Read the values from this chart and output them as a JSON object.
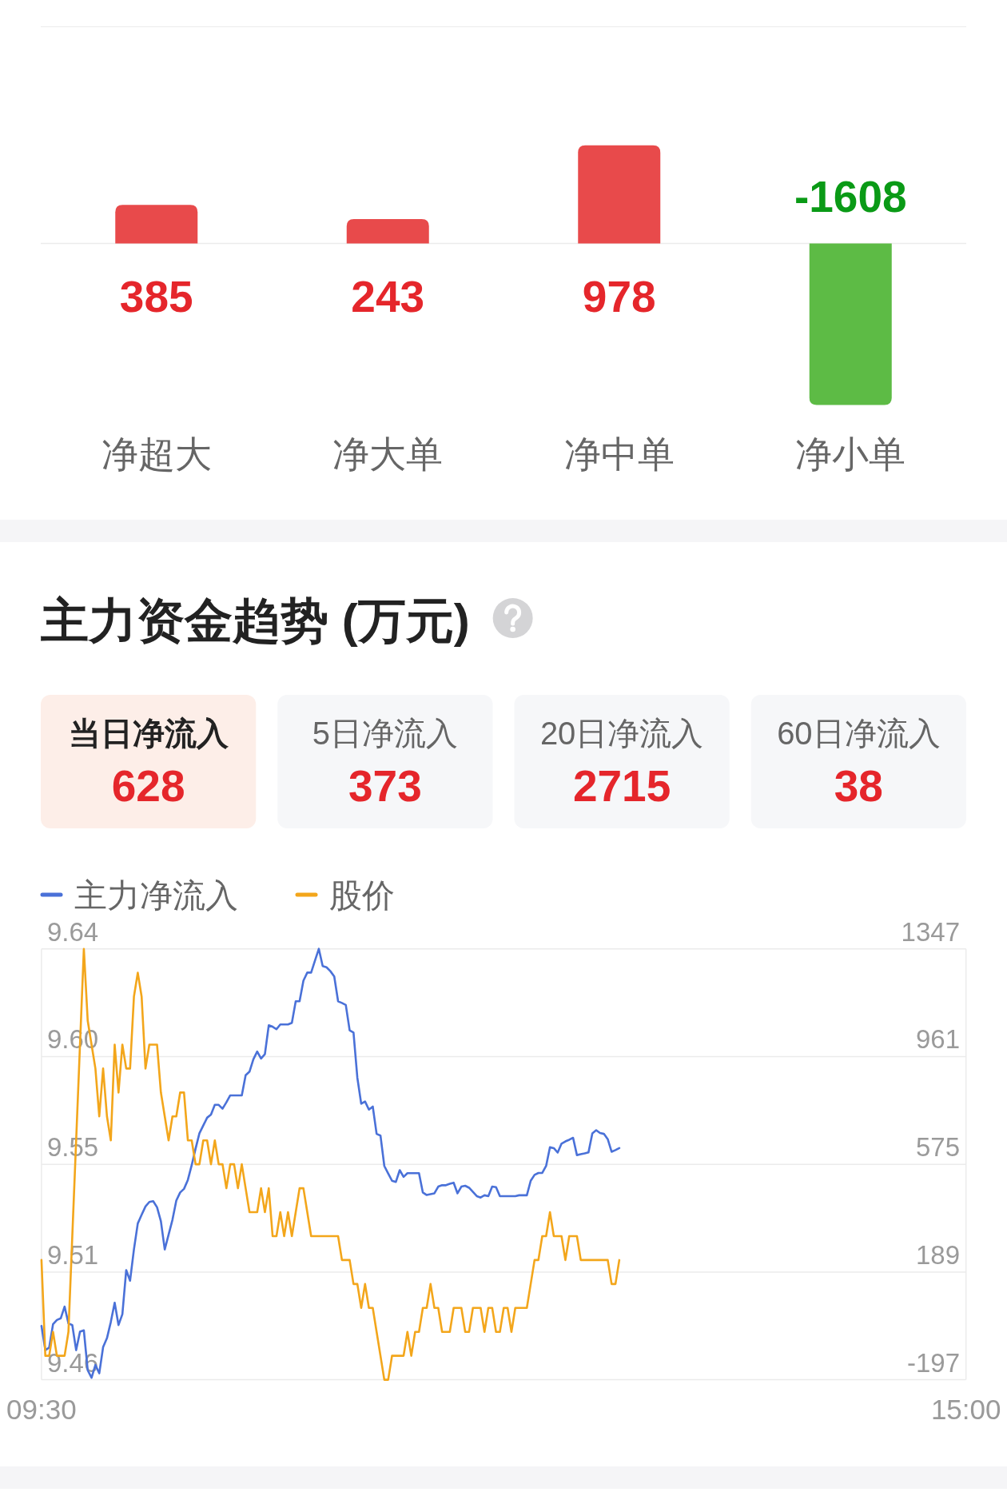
{
  "chart_data": [
    {
      "type": "bar",
      "categories": [
        "净超大",
        "净大单",
        "净中单",
        "净小单"
      ],
      "values": [
        385,
        243,
        978,
        -1608
      ],
      "colors": [
        "#e84a4b",
        "#e84a4b",
        "#e84a4b",
        "#5dbb45"
      ],
      "data_labels": true
    },
    {
      "type": "other",
      "title": "主力资金趋势 (万元)",
      "categories": [
        "当日净流入",
        "5日净流入",
        "20日净流入",
        "60日净流入"
      ],
      "values": [
        628,
        373,
        2715,
        38
      ],
      "colors": [
        "#fdeee8",
        "#f6f7f9",
        "#f6f7f9",
        "#f6f7f9"
      ],
      "data_labels": true
    },
    {
      "type": "line",
      "categories": [
        "09:30",
        null,
        null,
        null,
        null,
        null,
        null,
        null,
        null,
        null,
        null,
        null,
        null,
        null,
        null,
        null,
        null,
        null,
        null,
        null,
        null,
        null,
        null,
        null,
        null,
        null,
        null,
        null,
        null,
        null,
        null,
        null,
        null,
        null,
        null,
        null,
        null,
        null,
        null,
        null,
        null,
        null,
        null,
        null,
        null,
        null,
        null,
        null,
        null,
        null,
        null,
        null,
        null,
        null,
        null,
        null,
        null,
        null,
        null,
        null,
        null,
        null,
        null,
        null,
        null,
        null,
        null,
        null,
        null,
        null,
        null,
        null,
        null,
        null,
        null,
        null,
        null,
        null,
        null,
        null,
        null,
        null,
        null,
        null,
        null,
        null,
        null,
        null,
        null,
        null,
        null,
        null,
        null,
        null,
        null,
        null,
        null,
        null,
        null,
        null,
        null,
        null,
        null,
        null,
        null,
        null,
        null,
        null,
        null,
        null,
        null,
        null,
        null,
        null,
        null,
        null,
        null,
        null,
        null,
        null,
        null,
        null,
        null,
        null,
        null,
        null,
        null,
        null,
        null,
        null,
        null,
        null,
        null,
        null,
        null,
        null,
        null,
        null,
        null,
        null,
        null,
        null,
        null,
        null,
        null,
        null,
        null,
        null,
        null,
        null,
        null,
        null,
        null,
        null,
        null,
        null,
        null,
        null,
        null,
        null,
        null,
        null,
        null,
        null,
        null,
        null,
        null,
        null,
        null,
        null,
        null,
        null,
        null,
        null,
        null,
        null,
        null,
        null,
        null,
        null,
        null,
        null,
        null,
        null,
        null,
        null,
        null,
        null,
        null,
        null,
        null,
        null,
        null,
        null,
        null,
        null,
        null,
        null,
        null,
        null,
        null,
        null,
        null,
        null,
        null,
        null,
        null,
        null,
        null,
        null,
        null,
        null,
        null,
        null,
        null,
        null,
        null,
        null,
        null,
        null,
        null,
        null,
        null,
        null,
        null,
        null,
        null,
        null,
        null,
        null,
        null,
        null,
        null,
        null,
        null,
        null,
        null,
        null,
        null,
        null,
        "15:00"
      ],
      "ylim": [
        9.46,
        9.64
      ],
      "yticks": [
        9.46,
        {
          "value": 9.505,
          "label": "9.51"
        },
        9.55,
        {
          "value": 9.595,
          "label": "9.60"
        },
        9.64
      ],
      "y2lim": [
        -197,
        1347
      ],
      "y2ticks": [
        -197,
        189,
        575,
        961,
        1347
      ],
      "grid": "y",
      "legend": "top left",
      "series": [
        {
          "name": "主力净流入",
          "color": "#4a71d8",
          "axis": "y2",
          "values": [
            -4,
            -91,
            -82,
            2,
            17,
            23,
            65,
            5,
            -1,
            -91,
            -25,
            -20,
            -163,
            -190,
            -144,
            -174,
            -80,
            -48,
            10,
            79,
            -1,
            38,
            196,
            158,
            270,
            363,
            394,
            424,
            440,
            443,
            421,
            371,
            270,
            323,
            376,
            445,
            474,
            487,
            519,
            572,
            631,
            686,
            714,
            742,
            753,
            788,
            788,
            774,
            797,
            822,
            822,
            822,
            822,
            894,
            907,
            951,
            979,
            954,
            970,
            1073,
            1068,
            1059,
            1076,
            1076,
            1076,
            1082,
            1159,
            1159,
            1233,
            1262,
            1262,
            1305,
            1347,
            1285,
            1281,
            1267,
            1248,
            1159,
            1153,
            1146,
            1055,
            1047,
            885,
            792,
            800,
            771,
            782,
            684,
            678,
            569,
            542,
            516,
            512,
            554,
            530,
            543,
            543,
            543,
            543,
            474,
            465,
            468,
            471,
            495,
            500,
            500,
            505,
            509,
            471,
            495,
            498,
            491,
            476,
            461,
            456,
            464,
            461,
            495,
            493,
            461,
            461,
            461,
            461,
            461,
            464,
            464,
            464,
            516,
            537,
            544,
            544,
            569,
            636,
            633,
            617,
            649,
            657,
            663,
            670,
            608,
            611,
            614,
            618,
            686,
            697,
            687,
            684,
            665,
            620,
            626,
            633,
            null,
            null,
            null,
            null,
            null,
            null,
            null,
            null,
            null,
            null,
            null,
            null,
            null,
            null,
            null,
            null,
            null,
            null,
            null,
            null,
            null,
            null,
            null,
            null,
            null,
            null,
            null,
            null,
            null,
            null,
            null,
            null,
            null,
            null,
            null,
            null,
            null,
            null,
            null,
            null,
            null,
            null,
            null,
            null,
            null,
            null,
            null,
            null,
            null,
            null,
            null,
            null,
            null,
            null,
            null,
            null,
            null,
            null,
            null,
            null,
            null,
            null,
            null,
            null,
            null,
            null,
            null,
            null,
            null,
            null,
            null,
            null,
            null,
            null,
            null,
            null,
            null,
            null,
            null,
            null,
            null,
            null,
            null,
            null,
            null,
            null,
            null,
            null,
            null,
            null
          ]
        },
        {
          "name": "股价",
          "color": "#f3a61b",
          "values": [
            9.51,
            9.47,
            9.47,
            9.48,
            9.47,
            9.47,
            9.47,
            9.48,
            9.52,
            9.56,
            9.6,
            9.64,
            9.61,
            9.6,
            9.59,
            9.57,
            9.59,
            9.57,
            9.56,
            9.6,
            9.58,
            9.6,
            9.59,
            9.59,
            9.62,
            9.63,
            9.62,
            9.59,
            9.6,
            9.6,
            9.6,
            9.58,
            9.57,
            9.56,
            9.57,
            9.57,
            9.58,
            9.58,
            9.56,
            9.56,
            9.55,
            9.55,
            9.56,
            9.56,
            9.55,
            9.56,
            9.55,
            9.55,
            9.54,
            9.55,
            9.55,
            9.54,
            9.55,
            9.54,
            9.53,
            9.53,
            9.53,
            9.54,
            9.53,
            9.54,
            9.52,
            9.52,
            9.53,
            9.52,
            9.53,
            9.52,
            9.53,
            9.54,
            9.54,
            9.53,
            9.52,
            9.52,
            9.52,
            9.52,
            9.52,
            9.52,
            9.52,
            9.52,
            9.51,
            9.51,
            9.51,
            9.5,
            9.5,
            9.49,
            9.5,
            9.49,
            9.49,
            9.48,
            9.47,
            9.46,
            9.46,
            9.47,
            9.47,
            9.47,
            9.47,
            9.48,
            9.47,
            9.48,
            9.48,
            9.49,
            9.49,
            9.5,
            9.49,
            9.49,
            9.48,
            9.48,
            9.48,
            9.49,
            9.49,
            9.49,
            9.48,
            9.48,
            9.49,
            9.49,
            9.49,
            9.48,
            9.49,
            9.49,
            9.48,
            9.48,
            9.49,
            9.49,
            9.48,
            9.49,
            9.49,
            9.49,
            9.49,
            9.5,
            9.51,
            9.51,
            9.52,
            9.52,
            9.53,
            9.52,
            9.52,
            9.52,
            9.51,
            9.52,
            9.52,
            9.52,
            9.51,
            9.51,
            9.51,
            9.51,
            9.51,
            9.51,
            9.51,
            9.51,
            9.5,
            9.5,
            9.51,
            null,
            null,
            null,
            null,
            null,
            null,
            null,
            null,
            null,
            null,
            null,
            null,
            null,
            null,
            null,
            null,
            null,
            null,
            null,
            null,
            null,
            null,
            null,
            null,
            null,
            null,
            null,
            null,
            null,
            null,
            null,
            null,
            null,
            null,
            null,
            null,
            null,
            null,
            null,
            null,
            null,
            null,
            null,
            null,
            null,
            null,
            null,
            null,
            null,
            null,
            null,
            null,
            null,
            null,
            null,
            null,
            null,
            null,
            null,
            null,
            null,
            null,
            null,
            null,
            null,
            null,
            null,
            null,
            null,
            null,
            null,
            null,
            null,
            null,
            null,
            null,
            null,
            null,
            null,
            null,
            null,
            null,
            null,
            null,
            null,
            null,
            null,
            null,
            null,
            null
          ]
        }
      ]
    }
  ]
}
